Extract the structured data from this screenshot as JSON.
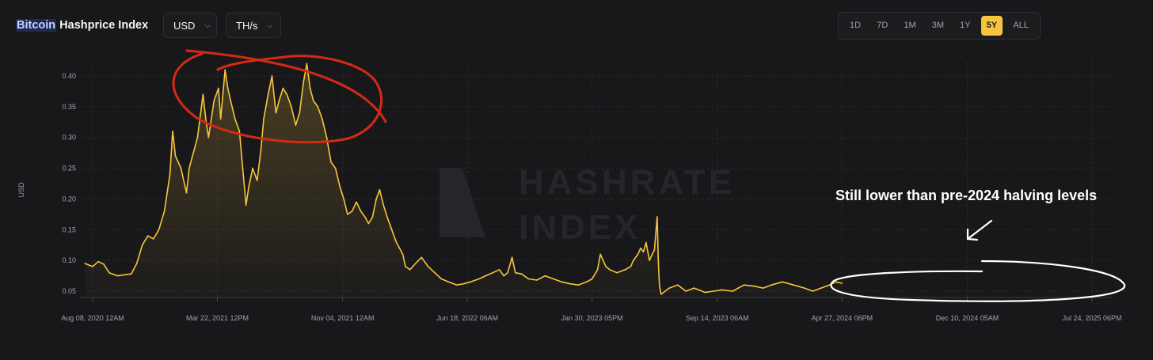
{
  "header": {
    "title_highlight": "Bitcoin",
    "title_rest": " Hashprice Index",
    "currency": "USD",
    "unit": "TH/s"
  },
  "ranges": [
    "1D",
    "7D",
    "1M",
    "3M",
    "1Y",
    "5Y",
    "ALL"
  ],
  "active_range": "5Y",
  "colors": {
    "accent": "#f7c53d",
    "circle_red": "#d42a12",
    "circle_white": "#ffffff"
  },
  "watermark": [
    "HASHRATE",
    "INDEX"
  ],
  "annotation": "Still lower than pre-2024 halving levels",
  "chart_data": {
    "type": "area",
    "title": "Bitcoin Hashprice Index",
    "xlabel": "",
    "ylabel": "USD",
    "ylim": [
      0.04,
      0.43
    ],
    "xlim": [
      0,
      1806
    ],
    "yticks": [
      0.05,
      0.1,
      0.15,
      0.2,
      0.25,
      0.3,
      0.35,
      0.4
    ],
    "xtick_labels": [
      "Aug 08, 2020 12AM",
      "Mar 22, 2021 12PM",
      "Nov 04, 2021 12AM",
      "Jun 18, 2022 06AM",
      "Jan 30, 2023 05PM",
      "Sep 14, 2023 06AM",
      "Apr 27, 2024 06PM",
      "Dec 10, 2024 05AM",
      "Jul 24, 2025 06PM"
    ],
    "xtick_days": [
      0,
      226,
      453,
      679,
      905,
      1132,
      1358,
      1585,
      1811
    ],
    "grid": true,
    "series": [
      {
        "color": "#f7c53d",
        "points": [
          [
            -14,
            0.095
          ],
          [
            0,
            0.09
          ],
          [
            10,
            0.098
          ],
          [
            20,
            0.094
          ],
          [
            30,
            0.08
          ],
          [
            45,
            0.075
          ],
          [
            70,
            0.078
          ],
          [
            80,
            0.095
          ],
          [
            90,
            0.125
          ],
          [
            100,
            0.14
          ],
          [
            110,
            0.135
          ],
          [
            120,
            0.15
          ],
          [
            130,
            0.18
          ],
          [
            140,
            0.24
          ],
          [
            145,
            0.31
          ],
          [
            150,
            0.27
          ],
          [
            160,
            0.25
          ],
          [
            170,
            0.21
          ],
          [
            175,
            0.25
          ],
          [
            190,
            0.3
          ],
          [
            200,
            0.37
          ],
          [
            205,
            0.33
          ],
          [
            210,
            0.3
          ],
          [
            220,
            0.36
          ],
          [
            228,
            0.38
          ],
          [
            232,
            0.33
          ],
          [
            240,
            0.41
          ],
          [
            245,
            0.38
          ],
          [
            250,
            0.36
          ],
          [
            258,
            0.33
          ],
          [
            266,
            0.31
          ],
          [
            272,
            0.25
          ],
          [
            278,
            0.19
          ],
          [
            283,
            0.22
          ],
          [
            290,
            0.25
          ],
          [
            298,
            0.23
          ],
          [
            305,
            0.28
          ],
          [
            310,
            0.33
          ],
          [
            318,
            0.37
          ],
          [
            325,
            0.4
          ],
          [
            332,
            0.34
          ],
          [
            338,
            0.36
          ],
          [
            345,
            0.38
          ],
          [
            352,
            0.37
          ],
          [
            360,
            0.35
          ],
          [
            368,
            0.32
          ],
          [
            375,
            0.34
          ],
          [
            382,
            0.39
          ],
          [
            388,
            0.42
          ],
          [
            394,
            0.38
          ],
          [
            400,
            0.36
          ],
          [
            408,
            0.35
          ],
          [
            416,
            0.33
          ],
          [
            424,
            0.3
          ],
          [
            432,
            0.26
          ],
          [
            440,
            0.25
          ],
          [
            448,
            0.22
          ],
          [
            455,
            0.2
          ],
          [
            462,
            0.175
          ],
          [
            470,
            0.18
          ],
          [
            478,
            0.195
          ],
          [
            486,
            0.18
          ],
          [
            494,
            0.17
          ],
          [
            500,
            0.16
          ],
          [
            507,
            0.17
          ],
          [
            514,
            0.2
          ],
          [
            520,
            0.215
          ],
          [
            527,
            0.19
          ],
          [
            534,
            0.17
          ],
          [
            542,
            0.15
          ],
          [
            550,
            0.13
          ],
          [
            556,
            0.12
          ],
          [
            562,
            0.11
          ],
          [
            567,
            0.09
          ],
          [
            575,
            0.085
          ],
          [
            585,
            0.095
          ],
          [
            596,
            0.105
          ],
          [
            608,
            0.09
          ],
          [
            620,
            0.08
          ],
          [
            632,
            0.07
          ],
          [
            645,
            0.065
          ],
          [
            660,
            0.06
          ],
          [
            672,
            0.062
          ],
          [
            685,
            0.065
          ],
          [
            700,
            0.07
          ],
          [
            712,
            0.075
          ],
          [
            725,
            0.08
          ],
          [
            737,
            0.085
          ],
          [
            745,
            0.075
          ],
          [
            752,
            0.08
          ],
          [
            760,
            0.105
          ],
          [
            766,
            0.08
          ],
          [
            777,
            0.078
          ],
          [
            790,
            0.07
          ],
          [
            805,
            0.068
          ],
          [
            820,
            0.075
          ],
          [
            835,
            0.07
          ],
          [
            850,
            0.065
          ],
          [
            865,
            0.062
          ],
          [
            880,
            0.06
          ],
          [
            895,
            0.065
          ],
          [
            905,
            0.07
          ],
          [
            915,
            0.085
          ],
          [
            920,
            0.11
          ],
          [
            925,
            0.1
          ],
          [
            930,
            0.09
          ],
          [
            937,
            0.085
          ],
          [
            950,
            0.08
          ],
          [
            965,
            0.085
          ],
          [
            975,
            0.09
          ],
          [
            980,
            0.1
          ],
          [
            988,
            0.11
          ],
          [
            993,
            0.12
          ],
          [
            998,
            0.114
          ],
          [
            1003,
            0.129
          ],
          [
            1009,
            0.1
          ],
          [
            1014,
            0.11
          ],
          [
            1018,
            0.117
          ],
          [
            1023,
            0.171
          ],
          [
            1025,
            0.1
          ],
          [
            1027,
            0.06
          ],
          [
            1030,
            0.045
          ],
          [
            1045,
            0.055
          ],
          [
            1060,
            0.06
          ],
          [
            1075,
            0.05
          ],
          [
            1090,
            0.055
          ],
          [
            1110,
            0.048
          ],
          [
            1125,
            0.05
          ],
          [
            1140,
            0.052
          ],
          [
            1160,
            0.05
          ],
          [
            1180,
            0.06
          ],
          [
            1200,
            0.058
          ],
          [
            1215,
            0.055
          ],
          [
            1230,
            0.06
          ],
          [
            1250,
            0.065
          ],
          [
            1270,
            0.06
          ],
          [
            1290,
            0.055
          ],
          [
            1305,
            0.05
          ],
          [
            1320,
            0.055
          ],
          [
            1335,
            0.06
          ],
          [
            1347,
            0.065
          ],
          [
            1358,
            0.063
          ]
        ]
      }
    ]
  }
}
